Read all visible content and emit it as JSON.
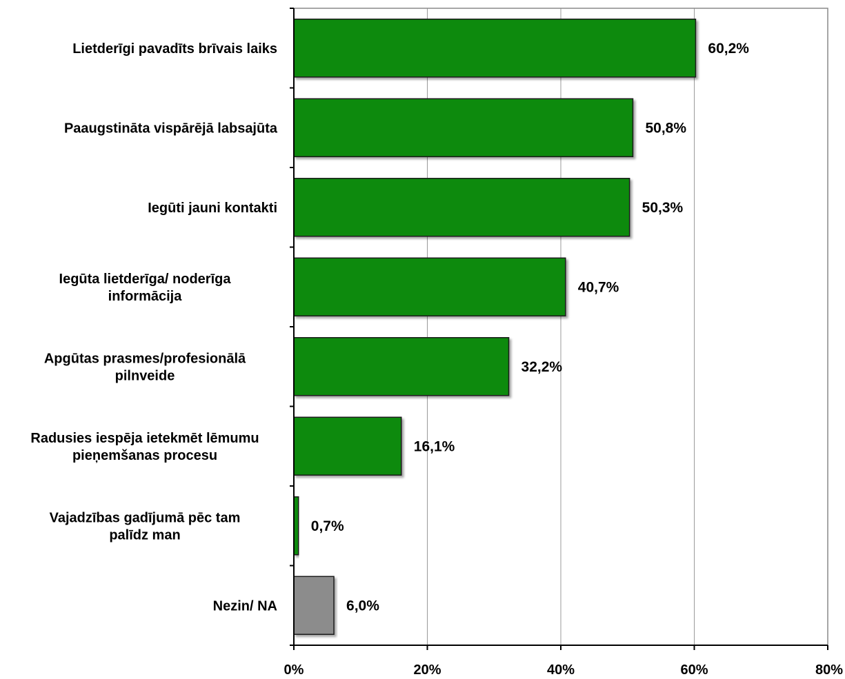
{
  "chart_data": {
    "type": "bar",
    "orientation": "horizontal",
    "categories": [
      [
        "Lietderīgi pavadīts brīvais laiks"
      ],
      [
        "Paaugstināta vispārējā labsajūta"
      ],
      [
        "Iegūti jauni  kontakti"
      ],
      [
        "Iegūta lietderīga/ noderīga",
        "informācija"
      ],
      [
        "Apgūtas prasmes/profesionālā",
        "pilnveide"
      ],
      [
        "Radusies iespēja ietekmēt lēmumu",
        "pieņemšanas procesu"
      ],
      [
        "Vajadzības gadījumā  pēc tam",
        "palīdz man"
      ],
      [
        "Nezin/ NA"
      ]
    ],
    "values": [
      60.2,
      50.8,
      50.3,
      40.7,
      32.2,
      16.1,
      0.7,
      6.0
    ],
    "value_labels": [
      "60,2%",
      "50,8%",
      "50,3%",
      "40,7%",
      "32,2%",
      "16,1%",
      "0,7%",
      "6,0%"
    ],
    "bar_colors": [
      "#0a8a0a",
      "#0a8a0a",
      "#0a8a0a",
      "#0a8a0a",
      "#0a8a0a",
      "#0a8a0a",
      "#0a8a0a",
      "#8c8c8c"
    ],
    "xlim": [
      0,
      80
    ],
    "xticks": [
      0,
      20,
      40,
      60,
      80
    ],
    "xtick_labels": [
      "0%",
      "20%",
      "40%",
      "60%",
      "80%"
    ],
    "grid": "vertical",
    "legend": "none"
  }
}
